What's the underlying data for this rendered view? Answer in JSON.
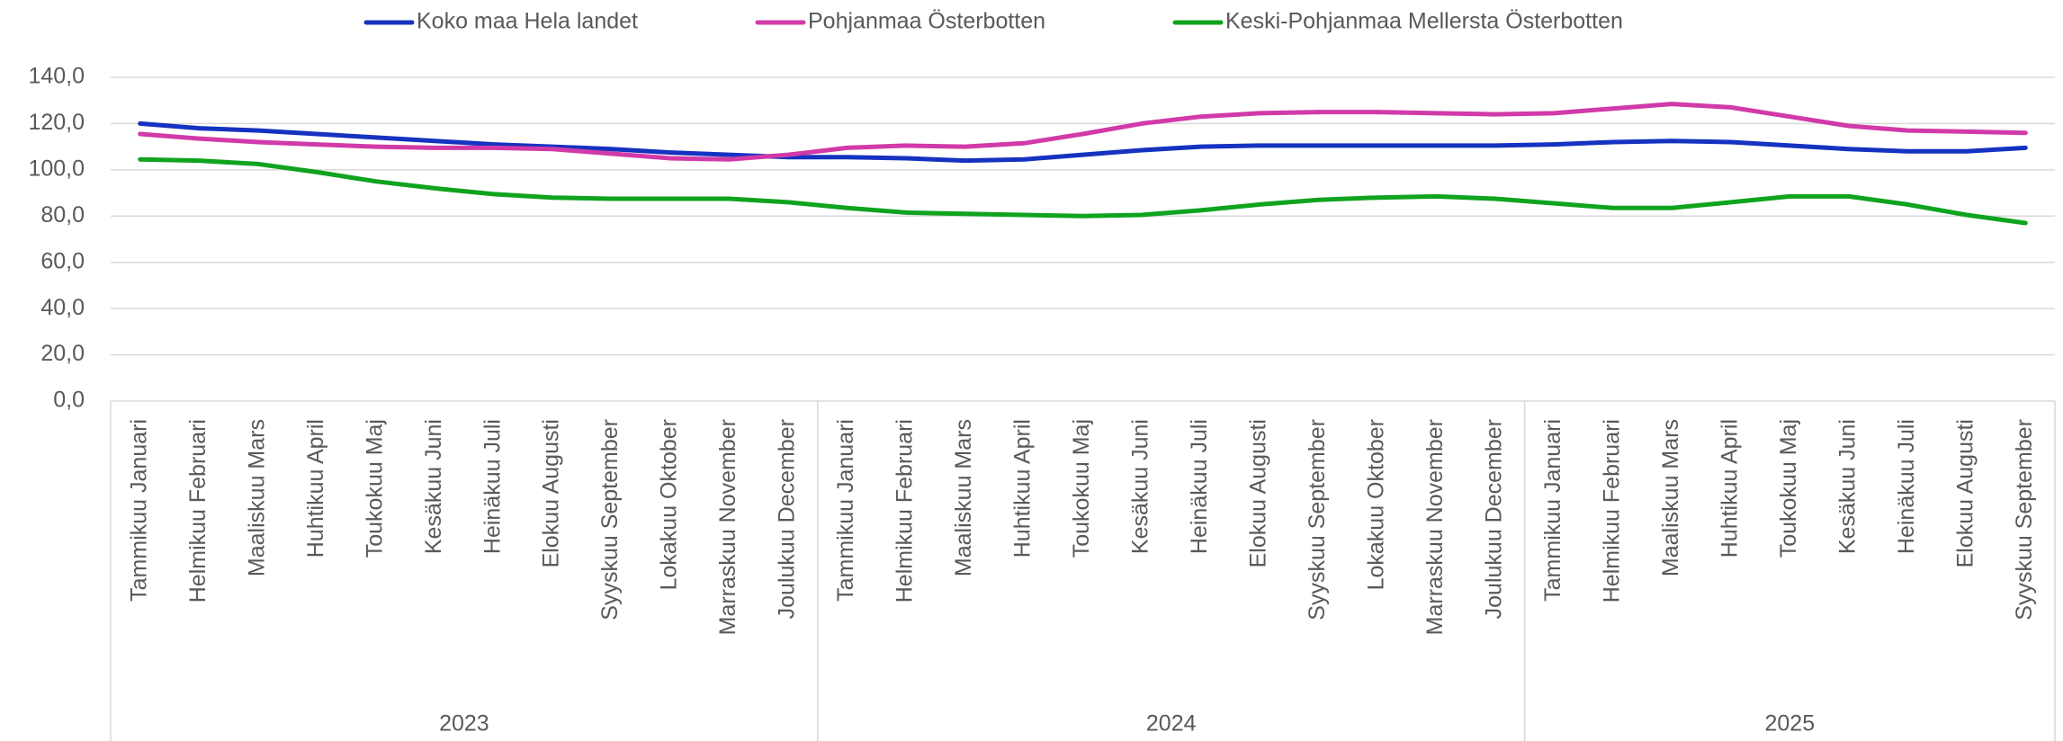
{
  "chart_data": {
    "type": "line",
    "categories": [
      "Tammikuu Januari",
      "Helmikuu Februari",
      "Maaliskuu Mars",
      "Huhtikuu April",
      "Toukokuu Maj",
      "Kesäkuu Juni",
      "Heinäkuu Juli",
      "Elokuu Augusti",
      "Syyskuu September",
      "Lokakuu Oktober",
      "Marraskuu November",
      "Joulukuu December",
      "Tammikuu Januari",
      "Helmikuu Februari",
      "Maaliskuu Mars",
      "Huhtikuu April",
      "Toukokuu Maj",
      "Kesäkuu Juni",
      "Heinäkuu Juli",
      "Elokuu Augusti",
      "Syyskuu September",
      "Lokakuu Oktober",
      "Marraskuu November",
      "Joulukuu December",
      "Tammikuu Januari",
      "Helmikuu Februari",
      "Maaliskuu Mars",
      "Huhtikuu April",
      "Toukokuu Maj",
      "Kesäkuu Juni",
      "Heinäkuu Juli",
      "Elokuu Augusti",
      "Syyskuu September"
    ],
    "category_years": [
      "2023",
      null,
      null,
      null,
      null,
      null,
      null,
      null,
      null,
      null,
      null,
      null,
      "2024",
      null,
      null,
      null,
      null,
      null,
      null,
      null,
      null,
      null,
      null,
      null,
      "2025",
      null,
      null,
      null,
      null,
      null,
      null,
      null,
      null
    ],
    "series": [
      {
        "name": "Koko maa Hela landet",
        "color": "#1532c0",
        "values": [
          120,
          118,
          117,
          115.5,
          114,
          112.5,
          111,
          110,
          109,
          107.5,
          106.5,
          105.5,
          105.5,
          105,
          104,
          104.5,
          106.5,
          108.5,
          110,
          110.5,
          110.5,
          110.5,
          110.5,
          110.5,
          111,
          112,
          112.5,
          112,
          110.5,
          109,
          108,
          108,
          109.5
        ]
      },
      {
        "name": "Pohjanmaa Österbotten",
        "color": "#d13aa8",
        "values": [
          115.5,
          113.5,
          112,
          111,
          110,
          109.5,
          109.5,
          109,
          107,
          105,
          104.5,
          106.5,
          109.5,
          110.5,
          110,
          111.5,
          115.5,
          120,
          123,
          124.5,
          125,
          125,
          124.5,
          124,
          124.5,
          126.5,
          128.5,
          127,
          123,
          119,
          117,
          116.5,
          116
        ]
      },
      {
        "name": "Keski-Pohjanmaa Mellersta Österbotten",
        "color": "#10a31f",
        "values": [
          104.5,
          104,
          102.5,
          99,
          95,
          92,
          89.5,
          88,
          87.5,
          87.5,
          87.5,
          86,
          83.5,
          81.5,
          81,
          80.5,
          80,
          80.5,
          82.5,
          85,
          87,
          88,
          88.5,
          87.5,
          85.5,
          83.5,
          83.5,
          86,
          88.5,
          88.5,
          85,
          80.5,
          77
        ]
      }
    ],
    "ylim": [
      0,
      140
    ],
    "yticks": [
      {
        "value": 0,
        "label": "0,0"
      },
      {
        "value": 20,
        "label": "20,0"
      },
      {
        "value": 40,
        "label": "40,0"
      },
      {
        "value": 60,
        "label": "60,0"
      },
      {
        "value": 80,
        "label": "80,0"
      },
      {
        "value": 100,
        "label": "100,0"
      },
      {
        "value": 120,
        "label": "120,0"
      },
      {
        "value": 140,
        "label": "140,0"
      }
    ],
    "grid": true,
    "legend": "top"
  }
}
